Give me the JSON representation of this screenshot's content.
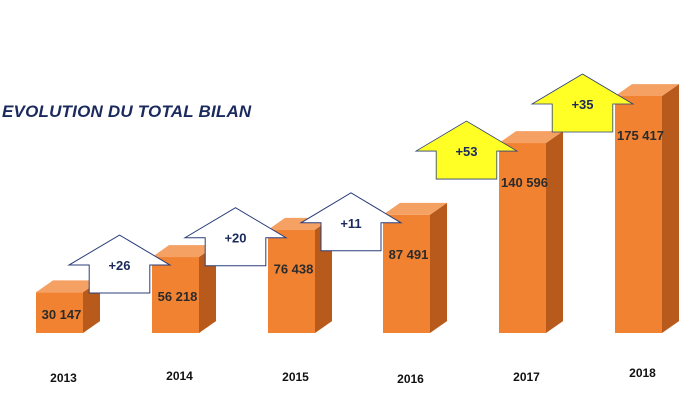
{
  "title": "EVOLUTION DU TOTAL BILAN",
  "colors": {
    "bar_front": "#f08232",
    "bar_side": "#b85a1c",
    "bar_top": "#f5a163",
    "arrow_highlight_fill": "#ffff26",
    "arrow_outline": "#2b3f7a",
    "title": "#1b2a5c"
  },
  "chart_data": {
    "type": "bar",
    "categories": [
      "2013",
      "2014",
      "2015",
      "2016",
      "2017",
      "2018"
    ],
    "values": [
      30147,
      56218,
      76438,
      87491,
      140596,
      175417
    ],
    "value_labels": [
      "30 147",
      "56 218",
      "76 438",
      "87 491",
      "140 596",
      "175 417"
    ],
    "increments": [
      {
        "label": "+26",
        "highlight": false
      },
      {
        "label": "+20",
        "highlight": false
      },
      {
        "label": "+11",
        "highlight": false
      },
      {
        "label": "+53",
        "highlight": true
      },
      {
        "label": "+35",
        "highlight": true
      }
    ],
    "ylim": [
      0,
      175417
    ]
  }
}
